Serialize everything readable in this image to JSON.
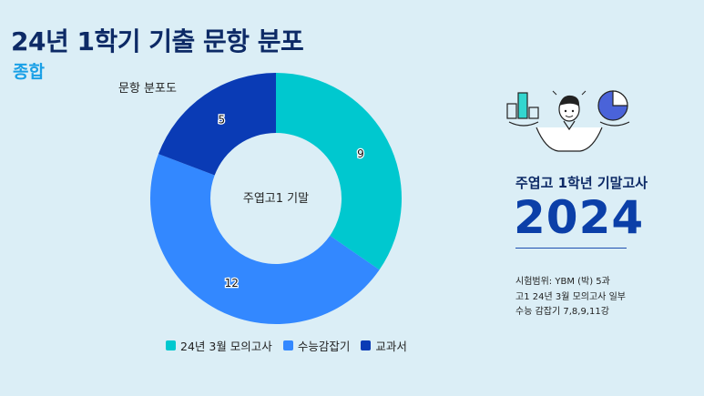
{
  "header": {
    "title": "24년 1학기 기출 문항 분포",
    "subtitle": "종합"
  },
  "chart_data": {
    "type": "pie",
    "title": "문항 분포도",
    "center_label": "주엽고1 기말",
    "categories": [
      "24년 3월 모의고사",
      "수능감잡기",
      "교과서"
    ],
    "values": [
      9,
      12,
      5
    ],
    "colors": [
      "#00c8cf",
      "#3388ff",
      "#0a3bb5"
    ],
    "legend_position": "bottom"
  },
  "sidebar": {
    "heading": "주엽고 1학년 기말고사",
    "year": "2024",
    "notes": [
      "시험범위: YBM (박) 5과",
      "고1 24년 3월 모의고사 일부",
      "수능 감잡기 7,8,9,11강"
    ]
  }
}
